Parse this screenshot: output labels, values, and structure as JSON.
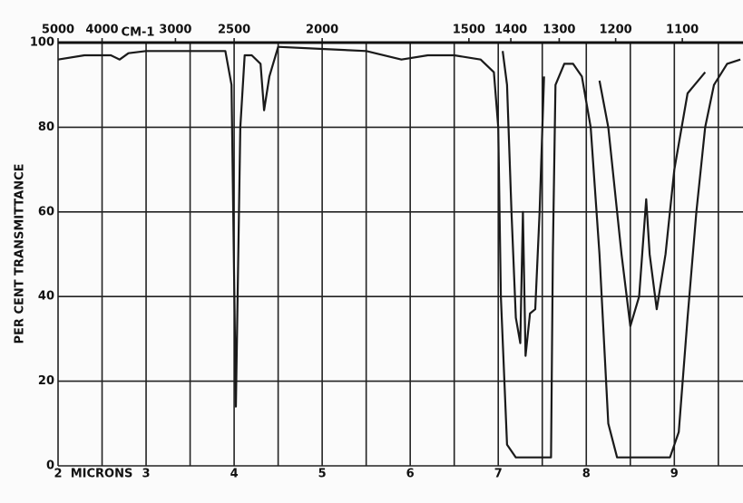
{
  "chart_data": {
    "type": "line",
    "y_label": "PER CENT TRANSMITTANCE",
    "x_label": "MICRONS",
    "top_axis_label": "CM-1",
    "xlim": [
      2,
      9.78
    ],
    "xticks": [
      2,
      3,
      4,
      5,
      6,
      7,
      8,
      9
    ],
    "x_minor_ticks": [
      2.5,
      3.5,
      4.5,
      5.5,
      6.5,
      7.5,
      8.5,
      9.5
    ],
    "top_ticks": [
      5000,
      4000,
      3000,
      2500,
      2000,
      1500,
      1400,
      1300,
      1200,
      1100
    ],
    "ylim": [
      0,
      100
    ],
    "yticks": [
      0,
      20,
      40,
      60,
      80,
      100
    ],
    "grid": true,
    "series": [
      {
        "color": "#1a1a1a",
        "x": [
          2.0,
          2.3,
          2.6,
          2.7,
          2.8,
          3.0,
          3.5,
          3.9,
          3.97,
          4.02,
          4.07,
          4.12,
          4.2,
          4.3,
          4.34,
          4.4,
          4.5,
          5.0,
          5.5,
          5.9,
          6.2,
          6.5,
          6.8,
          6.95,
          7.0,
          7.03,
          7.1,
          7.2,
          7.5,
          7.6,
          7.62,
          7.65,
          7.75,
          7.85,
          7.95,
          8.05,
          8.15,
          8.25,
          8.35,
          8.7,
          8.95,
          9.05,
          9.15,
          9.25,
          9.35,
          9.45,
          9.6,
          9.75
        ],
        "values": [
          96,
          97,
          97,
          96,
          97.5,
          98,
          98,
          98,
          90,
          14,
          80,
          97,
          97,
          95,
          84,
          92,
          99,
          98.5,
          98,
          96,
          97,
          97,
          96,
          93,
          80,
          40,
          5,
          2,
          2,
          2,
          50,
          90,
          95,
          95,
          92,
          80,
          50,
          10,
          2,
          2,
          2,
          8,
          35,
          60,
          80,
          90,
          95,
          96
        ]
      },
      {
        "color": "#1a1a1a",
        "x": [
          7.05,
          7.1,
          7.15,
          7.2,
          7.25,
          7.28,
          7.31,
          7.36,
          7.42,
          7.47,
          7.52,
          null,
          8.15,
          8.25,
          8.4,
          8.5,
          8.6,
          8.68,
          8.72,
          8.8,
          8.9,
          9.0,
          9.15,
          9.35
        ],
        "values": [
          98,
          90,
          60,
          35,
          29,
          60,
          26,
          36,
          37,
          60,
          92,
          null,
          91,
          80,
          50,
          33,
          40,
          63,
          50,
          37,
          50,
          70,
          88,
          93
        ]
      }
    ]
  }
}
